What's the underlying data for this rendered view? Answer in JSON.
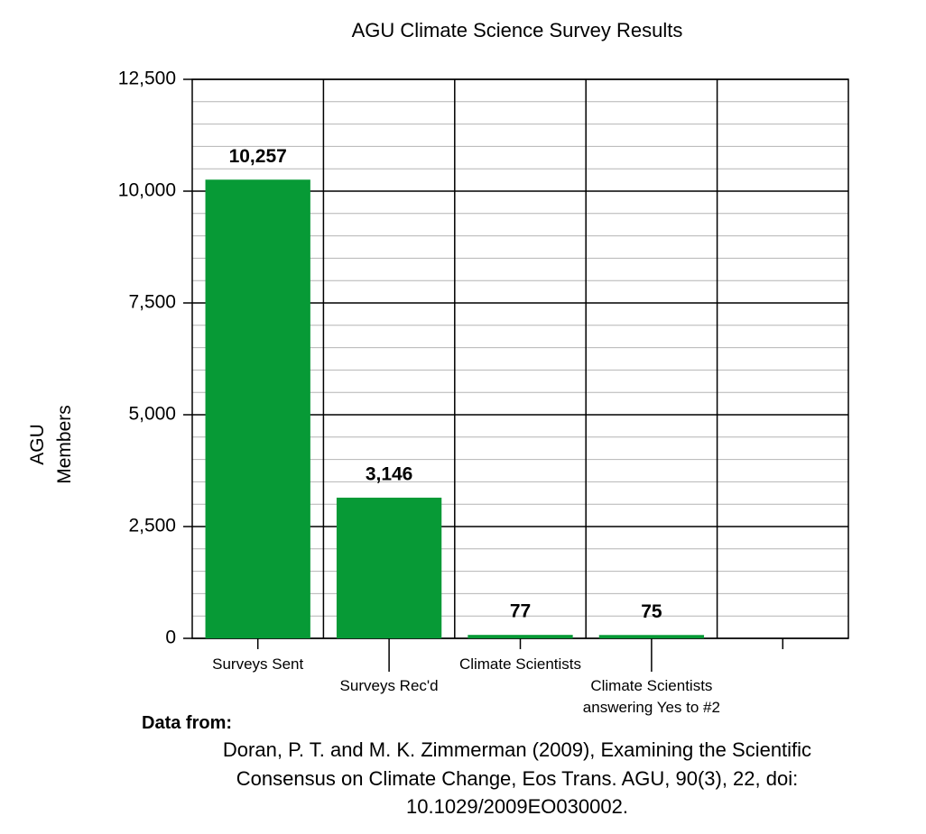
{
  "chart_data": {
    "type": "bar",
    "title": "AGU Climate Science Survey Results",
    "ylabel": "AGU Members",
    "categories": [
      "Surveys Sent",
      "Surveys Rec'd",
      "Climate Scientists",
      "Climate Scientists answering Yes to #2",
      null
    ],
    "values": [
      10257,
      3146,
      77,
      75,
      null
    ],
    "value_labels": [
      "10,257",
      "3,146",
      "77",
      "75",
      null
    ],
    "color": "#079a36",
    "ylim": [
      0,
      12500
    ],
    "yticks": [
      0,
      {
        "value": 2500,
        "label": "2,500"
      },
      {
        "value": 5000,
        "label": "5,000"
      },
      {
        "value": 7500,
        "label": "7,500"
      },
      {
        "value": 10000,
        "label": "10,000"
      },
      {
        "value": 12500,
        "label": "12,500"
      }
    ],
    "minor_yticks": [
      500,
      1000,
      1500,
      2000,
      3000,
      3500,
      4000,
      4500,
      5500,
      6000,
      6500,
      7000,
      8000,
      8500,
      9000,
      9500,
      10500,
      11000,
      11500,
      12000
    ],
    "grid": true,
    "source_heading": "Data from:",
    "source_lines": [
      "Doran, P. T. and M. K. Zimmerman (2009), Examining the Scientific",
      "Consensus on Climate Change, Eos Trans. AGU, 90(3), 22, doi:",
      "10.1029/2009EO030002."
    ]
  }
}
